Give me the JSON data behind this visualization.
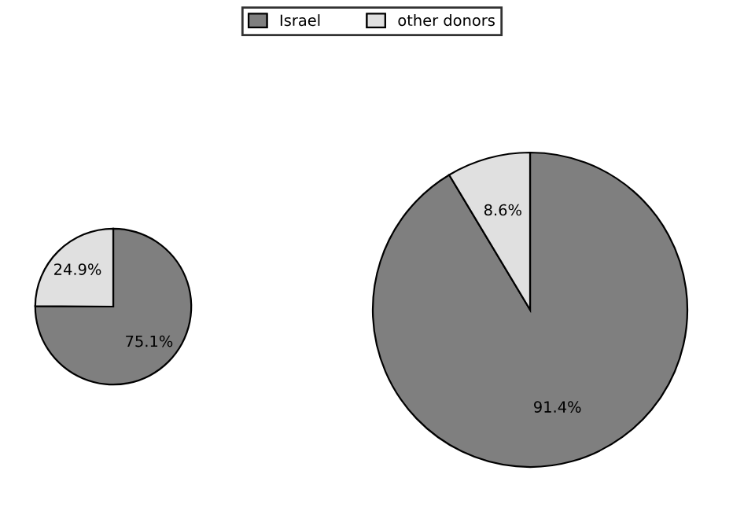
{
  "chart_data": [
    {
      "type": "pie",
      "categories": [
        "Israel",
        "other donors"
      ],
      "values": [
        75.1,
        24.9
      ],
      "value_labels": [
        "75.1%",
        "24.9%"
      ],
      "colors": [
        "#7f7f7f",
        "#e0e0e0"
      ],
      "legend": "top"
    },
    {
      "type": "pie",
      "categories": [
        null,
        null
      ],
      "values": [
        91.4,
        8.6
      ],
      "value_labels": [
        "91.4%",
        "8.6%"
      ],
      "colors": [
        "#7f7f7f",
        "#e0e0e0"
      ]
    }
  ]
}
